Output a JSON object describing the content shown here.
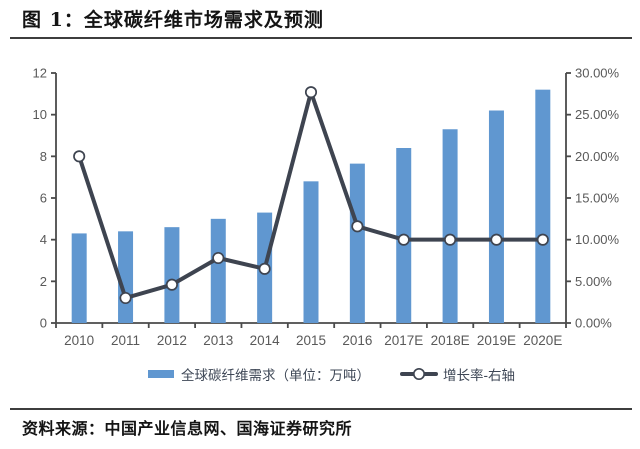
{
  "header": {
    "figure_label": "图 1：",
    "title": "全球碳纤维市场需求及预测"
  },
  "footer": {
    "source_label": "资料来源：",
    "source_text": "中国产业信息网、国海证券研究所"
  },
  "colors": {
    "bar": "#6097D0",
    "line": "#3E4450",
    "marker_fill": "#FFFFFF",
    "axis": "#4A4A4A",
    "tick_text": "#595959",
    "legend_text": "#3E4756",
    "divider": "#3D3D3D"
  },
  "chart_data": {
    "type": "combo-bar-line",
    "title": "全球碳纤维市场需求及预测",
    "categories": [
      "2010",
      "2011",
      "2012",
      "2013",
      "2014",
      "2015",
      "2016",
      "2017E",
      "2018E",
      "2019E",
      "2020E"
    ],
    "series": [
      {
        "name": "全球碳纤维需求（单位：万吨）",
        "type": "bar",
        "axis": "left",
        "color": "#6097D0",
        "values": [
          4.3,
          4.4,
          4.6,
          5.0,
          5.3,
          6.8,
          7.65,
          8.4,
          9.3,
          10.2,
          11.2
        ]
      },
      {
        "name": "增长率-右轴",
        "type": "line",
        "axis": "right",
        "color": "#3E4450",
        "marker": "circle",
        "marker_fill": "#FFFFFF",
        "values": [
          20.0,
          3.0,
          4.6,
          7.8,
          6.5,
          27.7,
          11.6,
          10.0,
          10.0,
          10.0,
          10.0
        ]
      }
    ],
    "left_axis": {
      "min": 0,
      "max": 12,
      "step": 2,
      "tick_labels": [
        "0",
        "2",
        "4",
        "6",
        "8",
        "10",
        "12"
      ]
    },
    "right_axis": {
      "min": 0,
      "max": 30,
      "step": 5,
      "tick_labels": [
        "0.00%",
        "5.00%",
        "10.00%",
        "15.00%",
        "20.00%",
        "25.00%",
        "30.00%"
      ]
    },
    "grid": false,
    "legend_position": "bottom"
  }
}
